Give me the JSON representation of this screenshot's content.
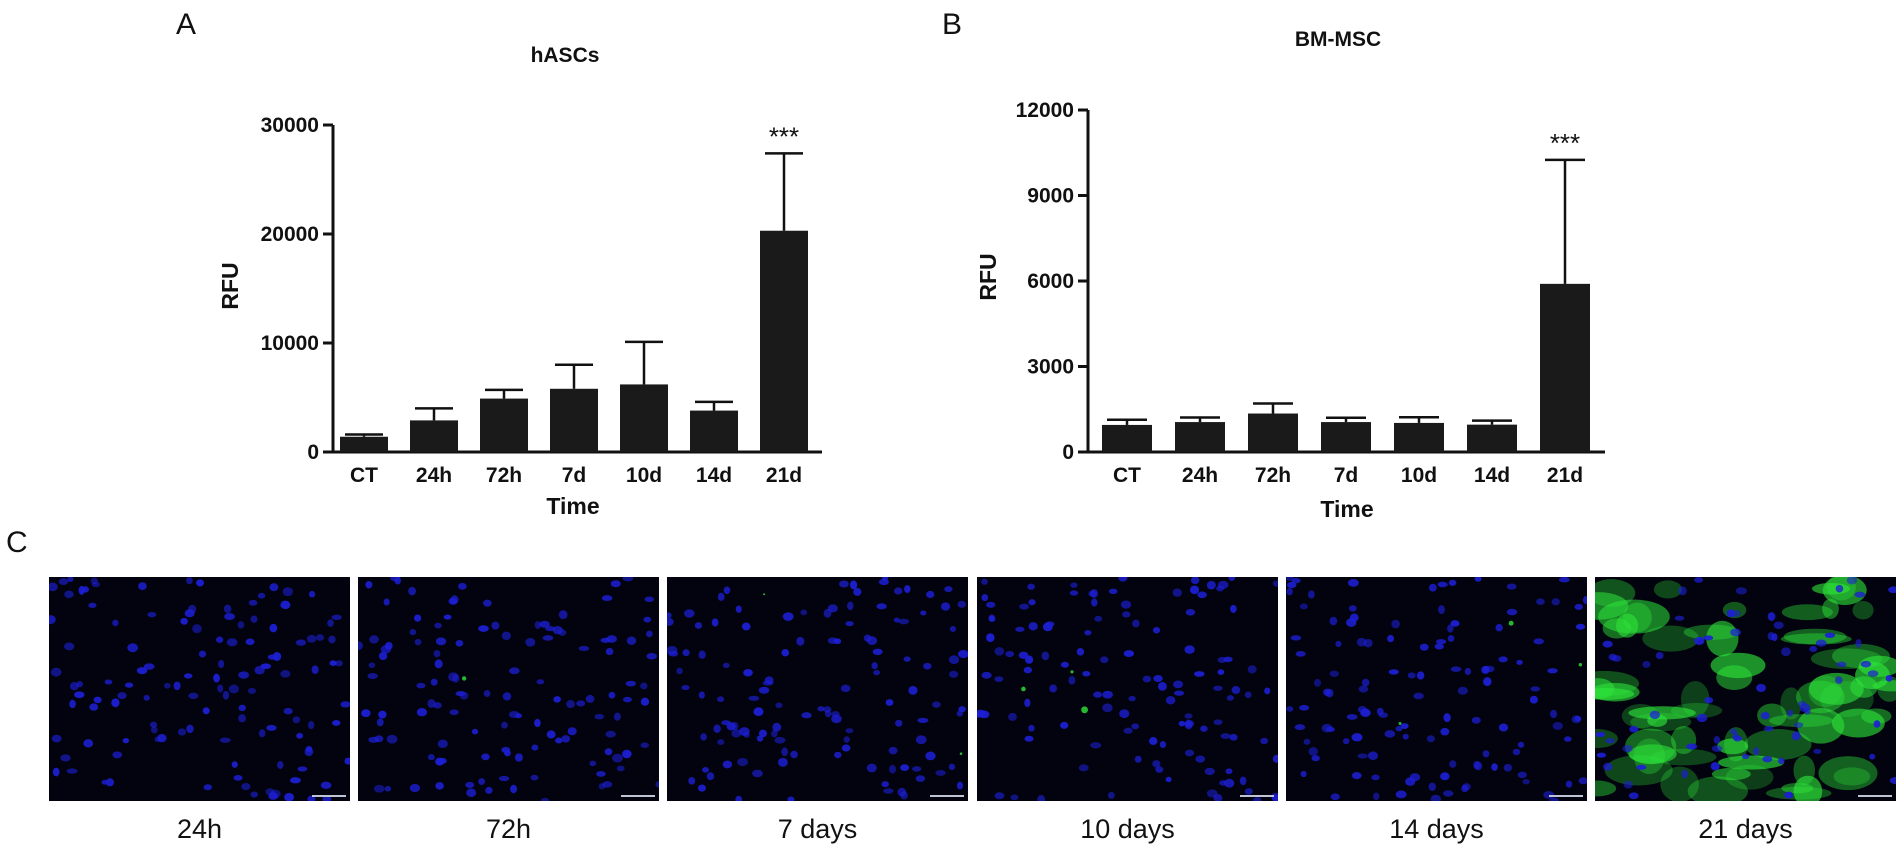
{
  "panels": {
    "a": "A",
    "b": "B",
    "c": "C"
  },
  "colors": {
    "bar": "#1a1a1a",
    "nuclei": "#1d1fd6",
    "green_signal": "#2ee63a",
    "background": "#02030e"
  },
  "chart_data": [
    {
      "type": "bar",
      "title": "hASCs",
      "xlabel": "Time",
      "ylabel": "RFU",
      "categories": [
        "CT",
        "24h",
        "72h",
        "7d",
        "10d",
        "14d",
        "21d"
      ],
      "values": [
        1400,
        2900,
        4900,
        5800,
        6200,
        3800,
        20300
      ],
      "error": [
        200,
        1100,
        800,
        2200,
        3900,
        800,
        7100
      ],
      "ylim": [
        0,
        30000
      ],
      "yticks": [
        0,
        10000,
        20000,
        30000
      ],
      "yticklabels": [
        "0",
        "10000",
        "20000",
        "30000"
      ],
      "annotation": {
        "category": "21d",
        "text": "***"
      }
    },
    {
      "type": "bar",
      "title": "BM-MSC",
      "xlabel": "Time",
      "ylabel": "RFU",
      "categories": [
        "CT",
        "24h",
        "72h",
        "7d",
        "10d",
        "14d",
        "21d"
      ],
      "values": [
        950,
        1050,
        1350,
        1050,
        1020,
        960,
        5900
      ],
      "error": [
        180,
        160,
        350,
        150,
        200,
        140,
        4350
      ],
      "ylim": [
        0,
        12000
      ],
      "yticks": [
        0,
        3000,
        6000,
        9000,
        12000
      ],
      "yticklabels": [
        "0",
        "3000",
        "6000",
        "9000",
        "12000"
      ],
      "annotation": {
        "category": "21d",
        "text": "***"
      }
    }
  ],
  "micrographs": [
    {
      "label": "24h",
      "green_level": 0
    },
    {
      "label": "72h",
      "green_level": 0.02
    },
    {
      "label": "7 days",
      "green_level": 0.03
    },
    {
      "label": "10 days",
      "green_level": 0.05
    },
    {
      "label": "14 days",
      "green_level": 0.05
    },
    {
      "label": "21 days",
      "green_level": 0.8
    }
  ]
}
